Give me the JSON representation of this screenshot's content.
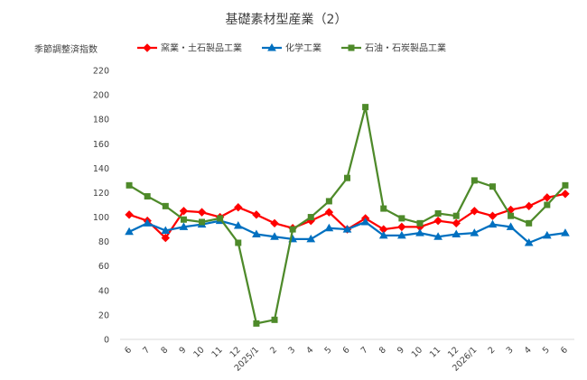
{
  "chart_data": {
    "type": "line",
    "title": "基礎素材型産業（2）",
    "ylabel": "季節調整済指数",
    "ylim": [
      0,
      220
    ],
    "yticks": [
      0,
      20,
      40,
      60,
      80,
      100,
      120,
      140,
      160,
      180,
      200,
      220
    ],
    "grid": false,
    "legend_position": "top",
    "categories": [
      "6",
      "7",
      "8",
      "9",
      "10",
      "11",
      "12",
      "2025/1",
      "2",
      "3",
      "4",
      "5",
      "6",
      "7",
      "8",
      "9",
      "10",
      "11",
      "12",
      "2026/1",
      "2",
      "3",
      "4",
      "5",
      "6"
    ],
    "series": [
      {
        "name": "窯業・土石製品工業",
        "color": "#ff0000",
        "marker": "diamond",
        "values": [
          102,
          97,
          83,
          105,
          104,
          100,
          108,
          102,
          95,
          91,
          97,
          104,
          90,
          99,
          90,
          92,
          92,
          97,
          95,
          105,
          101,
          106,
          109,
          116,
          119
        ]
      },
      {
        "name": "化学工業",
        "color": "#0070c0",
        "marker": "triangle",
        "values": [
          88,
          95,
          89,
          92,
          94,
          97,
          93,
          86,
          84,
          82,
          82,
          91,
          90,
          96,
          85,
          85,
          87,
          84,
          86,
          87,
          94,
          92,
          79,
          85,
          87
        ]
      },
      {
        "name": "石油・石炭製品工業",
        "color": "#4e8a2a",
        "marker": "square",
        "values": [
          126,
          117,
          109,
          98,
          96,
          99,
          79,
          13,
          16,
          90,
          100,
          113,
          132,
          190,
          107,
          99,
          95,
          103,
          101,
          130,
          125,
          101,
          95,
          110,
          126
        ]
      }
    ]
  }
}
